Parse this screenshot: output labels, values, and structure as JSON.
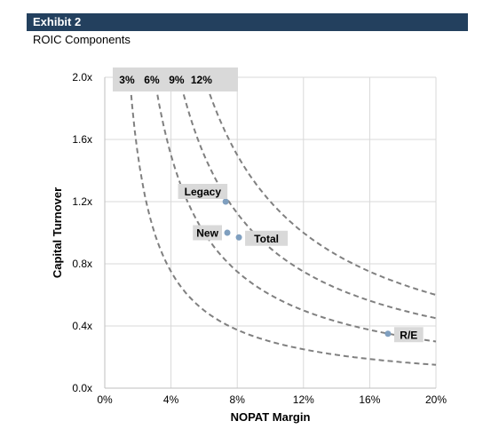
{
  "exhibit": {
    "label": "Exhibit 2",
    "subtitle": "ROIC Components"
  },
  "colors": {
    "header_bg": "#23405e",
    "point": "#7f9fbf",
    "curve": "#808080",
    "label_bg": "#d9d9d9",
    "grid": "#d9d9d9"
  },
  "chart_data": {
    "type": "scatter",
    "xlabel": "NOPAT Margin",
    "ylabel": "Capital Turnover",
    "xlim": [
      0,
      0.2
    ],
    "ylim": [
      0,
      2.0
    ],
    "x_ticks": [
      {
        "v": 0,
        "label": "0%"
      },
      {
        "v": 0.04,
        "label": "4%"
      },
      {
        "v": 0.08,
        "label": "8%"
      },
      {
        "v": 0.12,
        "label": "12%"
      },
      {
        "v": 0.16,
        "label": "16%"
      },
      {
        "v": 0.2,
        "label": "20%"
      }
    ],
    "y_ticks": [
      {
        "v": 0,
        "label": "0.0x"
      },
      {
        "v": 0.4,
        "label": "0.4x"
      },
      {
        "v": 0.8,
        "label": "0.8x"
      },
      {
        "v": 1.2,
        "label": "1.2x"
      },
      {
        "v": 1.6,
        "label": "1.6x"
      },
      {
        "v": 2.0,
        "label": "2.0x"
      }
    ],
    "grid": true,
    "iso_roic_curves": [
      {
        "roic": 0.03,
        "label": "3%"
      },
      {
        "roic": 0.06,
        "label": "6%"
      },
      {
        "roic": 0.09,
        "label": "9%"
      },
      {
        "roic": 0.12,
        "label": "12%"
      }
    ],
    "points": [
      {
        "name": "Legacy",
        "x": 0.073,
        "y": 1.2,
        "label_pos": "upper-left"
      },
      {
        "name": "New",
        "x": 0.074,
        "y": 1.0,
        "label_pos": "left"
      },
      {
        "name": "Total",
        "x": 0.081,
        "y": 0.97,
        "label_pos": "right"
      },
      {
        "name": "R/E",
        "x": 0.171,
        "y": 0.35,
        "label_pos": "right"
      }
    ]
  }
}
